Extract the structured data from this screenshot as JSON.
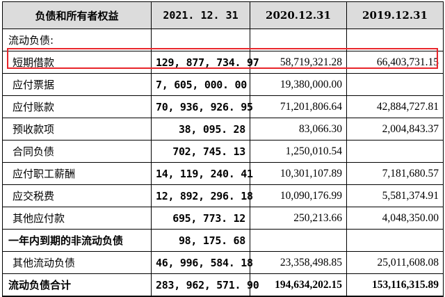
{
  "header": {
    "label": "负债和所有者权益",
    "years": [
      "2021. 12. 31",
      "2020.12.31",
      "2019.12.31"
    ]
  },
  "section_title": "流动负债:",
  "rows": [
    {
      "label": "短期借款",
      "v2021": "129, 877, 734. 97",
      "v2020": "58,719,321.28",
      "v2019": "66,403,731.15",
      "highlighted": true
    },
    {
      "label": "应付票据",
      "v2021": "7, 605, 000. 00",
      "v2020": "19,380,000.00",
      "v2019": ""
    },
    {
      "label": "应付账款",
      "v2021": "70, 936, 926. 95",
      "v2020": "71,201,806.64",
      "v2019": "42,884,727.81"
    },
    {
      "label": "预收款项",
      "v2021": "38, 095. 28",
      "v2020": "83,066.30",
      "v2019": "2,004,843.37"
    },
    {
      "label": "合同负债",
      "v2021": "702, 745. 13",
      "v2020": "1,250,010.54",
      "v2019": ""
    },
    {
      "label": "应付职工薪酬",
      "v2021": "14, 119, 240. 41",
      "v2020": "10,301,107.89",
      "v2019": "7,181,680.57"
    },
    {
      "label": "应交税费",
      "v2021": "12, 892, 296. 18",
      "v2020": "10,090,176.99",
      "v2019": "5,581,374.91"
    },
    {
      "label": "其他应付款",
      "v2021": "695, 773. 12",
      "v2020": "250,213.66",
      "v2019": "4,048,350.00"
    },
    {
      "label": "一年内到期的非流动负债",
      "v2021": "98, 175. 68",
      "v2020": "",
      "v2019": "",
      "bold_label": true
    },
    {
      "label": "其他流动负债",
      "v2021": "46, 996, 584. 18",
      "v2020": "23,358,498.85",
      "v2019": "25,011,608.08"
    }
  ],
  "total": {
    "label": "流动负债合计",
    "v2021": "283, 962, 571. 90",
    "v2020": "194,634,202.15",
    "v2019": "153,116,315.89"
  },
  "colors": {
    "header_bg": "#dcdcdc",
    "highlight_border": "#e8252a",
    "grid": "#000000"
  }
}
